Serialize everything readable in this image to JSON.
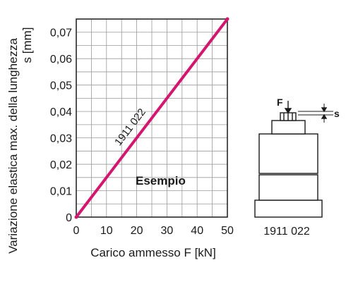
{
  "chart_data": {
    "type": "line",
    "xlabel": "Carico ammesso F [kN]",
    "ylabel_line1": "Variazione elastica max. della lunghezza",
    "ylabel_line2": "s [mm]",
    "x_ticks": [
      "0",
      "10",
      "20",
      "30",
      "40",
      "50"
    ],
    "y_ticks": [
      "0",
      "0,01",
      "0,02",
      "0,03",
      "0,04",
      "0,05",
      "0,06",
      "0,07"
    ],
    "xlim": [
      0,
      50
    ],
    "ylim": [
      0,
      0.075
    ],
    "grid": true,
    "series": [
      {
        "name": "1911 022",
        "x": [
          0,
          50
        ],
        "y": [
          0,
          0.075
        ],
        "color": "#d4166f"
      }
    ],
    "annotation": "Esempio"
  },
  "diagram": {
    "part_number": "1911 022",
    "force_label": "F",
    "displacement_label": "s"
  }
}
